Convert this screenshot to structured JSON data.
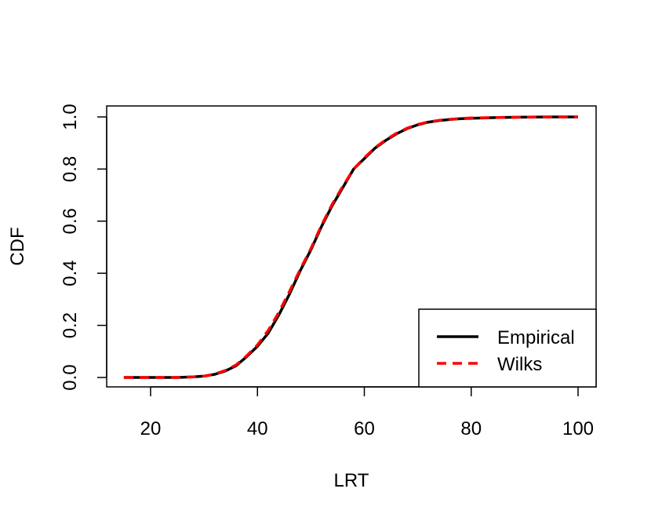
{
  "chart_data": {
    "type": "line",
    "title": "",
    "xlabel": "LRT",
    "ylabel": "CDF",
    "xlim": [
      15,
      100
    ],
    "ylim": [
      0,
      1
    ],
    "x_ticks": [
      20,
      40,
      60,
      80,
      100
    ],
    "y_ticks": [
      0.0,
      0.2,
      0.4,
      0.6,
      0.8,
      1.0
    ],
    "x_tick_labels": [
      "20",
      "40",
      "60",
      "80",
      "100"
    ],
    "y_tick_labels": [
      "0.0",
      "0.2",
      "0.4",
      "0.6",
      "0.8",
      "1.0"
    ],
    "grid": false,
    "legend_position": "bottom-right",
    "series": [
      {
        "name": "Empirical",
        "color": "#000000",
        "dash": "solid",
        "x": [
          15,
          20,
          25,
          28,
          30,
          32,
          34,
          36,
          38,
          40,
          42,
          44,
          46,
          48,
          50,
          52,
          54,
          56,
          58,
          60,
          62,
          64,
          66,
          68,
          70,
          72,
          74,
          76,
          78,
          80,
          85,
          90,
          95,
          100
        ],
        "y": [
          0.0,
          0.0,
          0.0,
          0.002,
          0.005,
          0.012,
          0.025,
          0.045,
          0.08,
          0.12,
          0.17,
          0.24,
          0.32,
          0.41,
          0.49,
          0.58,
          0.66,
          0.73,
          0.8,
          0.84,
          0.88,
          0.91,
          0.935,
          0.955,
          0.97,
          0.98,
          0.986,
          0.99,
          0.993,
          0.995,
          0.998,
          0.999,
          1.0,
          1.0
        ]
      },
      {
        "name": "Wilks",
        "color": "#ff0000",
        "dash": "dashed",
        "x": [
          15,
          20,
          25,
          28,
          30,
          32,
          34,
          36,
          38,
          40,
          42,
          44,
          46,
          48,
          50,
          52,
          54,
          56,
          58,
          60,
          62,
          64,
          66,
          68,
          70,
          72,
          74,
          76,
          78,
          80,
          85,
          90,
          95,
          100
        ],
        "y": [
          0.0,
          0.0,
          0.0,
          0.002,
          0.005,
          0.013,
          0.027,
          0.048,
          0.083,
          0.125,
          0.18,
          0.25,
          0.33,
          0.415,
          0.495,
          0.585,
          0.665,
          0.735,
          0.8,
          0.843,
          0.882,
          0.912,
          0.937,
          0.957,
          0.971,
          0.981,
          0.987,
          0.991,
          0.994,
          0.996,
          0.998,
          0.999,
          1.0,
          1.0
        ]
      }
    ]
  }
}
